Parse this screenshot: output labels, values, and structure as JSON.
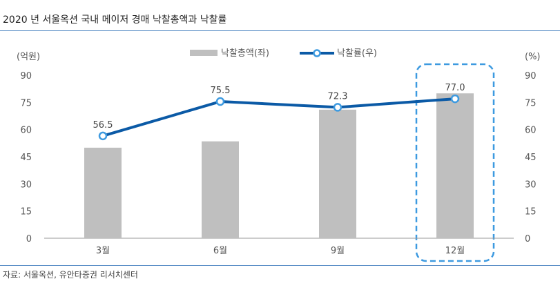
{
  "title": "2020 년 서울옥션 국내 메이저 경매 낙찰총액과 낙찰률",
  "source": "자료: 서울옥션, 유안타증권 리서치센터",
  "colors": {
    "bar": "#bfbfbf",
    "line": "#0b5aa6",
    "highlight": "#3d9ae0",
    "rule": "#5b8fc7"
  },
  "chart_data": {
    "type": "bar",
    "categories": [
      "3월",
      "6월",
      "9월",
      "12월"
    ],
    "series": [
      {
        "name": "낙찰총액(좌)",
        "type": "bar",
        "axis": "left",
        "values": [
          50,
          53.5,
          71,
          80
        ]
      },
      {
        "name": "낙찰률(우)",
        "type": "line",
        "axis": "right",
        "values": [
          56.5,
          75.5,
          72.3,
          77.0
        ],
        "labels": [
          "56.5",
          "75.5",
          "72.3",
          "77.0"
        ]
      }
    ],
    "y_left": {
      "unit": "(억원)",
      "range": [
        0,
        90
      ],
      "ticks": [
        "0",
        "15",
        "30",
        "45",
        "60",
        "75",
        "90"
      ]
    },
    "y_right": {
      "unit": "(%)",
      "range": [
        0,
        90
      ],
      "ticks": [
        "0",
        "15",
        "30",
        "45",
        "60",
        "75",
        "90"
      ]
    },
    "highlight_category": "12월",
    "legend_position": "top",
    "grid": false
  }
}
